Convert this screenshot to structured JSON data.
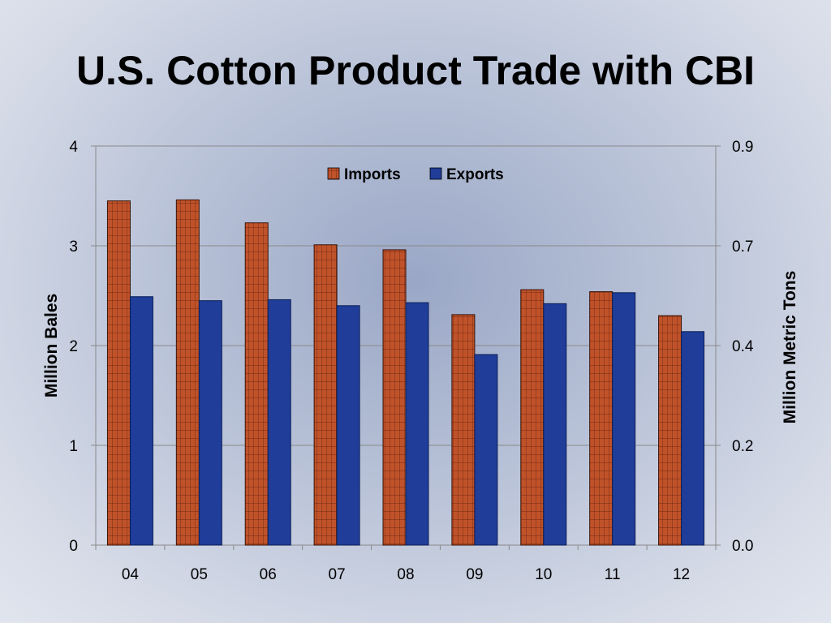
{
  "title": "U.S. Cotton Product Trade with CBI",
  "chart_data": {
    "type": "bar",
    "categories": [
      "04",
      "05",
      "06",
      "07",
      "08",
      "09",
      "10",
      "11",
      "12"
    ],
    "series": [
      {
        "name": "Imports",
        "values": [
          3.45,
          3.46,
          3.23,
          3.01,
          2.96,
          2.31,
          2.56,
          2.54,
          2.3
        ],
        "color": "#c0522a"
      },
      {
        "name": "Exports",
        "values": [
          2.49,
          2.45,
          2.46,
          2.4,
          2.43,
          1.91,
          2.42,
          2.53,
          2.14
        ],
        "color": "#1f3d99"
      }
    ],
    "ylabel": "Million Bales",
    "y2label": "Million Metric Tons",
    "ylim": [
      0,
      4
    ],
    "yticks": [
      "0",
      "1",
      "2",
      "3",
      "4"
    ],
    "y2ticks": [
      "0.0",
      "0.2",
      "0.4",
      "0.7",
      "0.9"
    ],
    "grid": true,
    "legend": "top-center"
  }
}
